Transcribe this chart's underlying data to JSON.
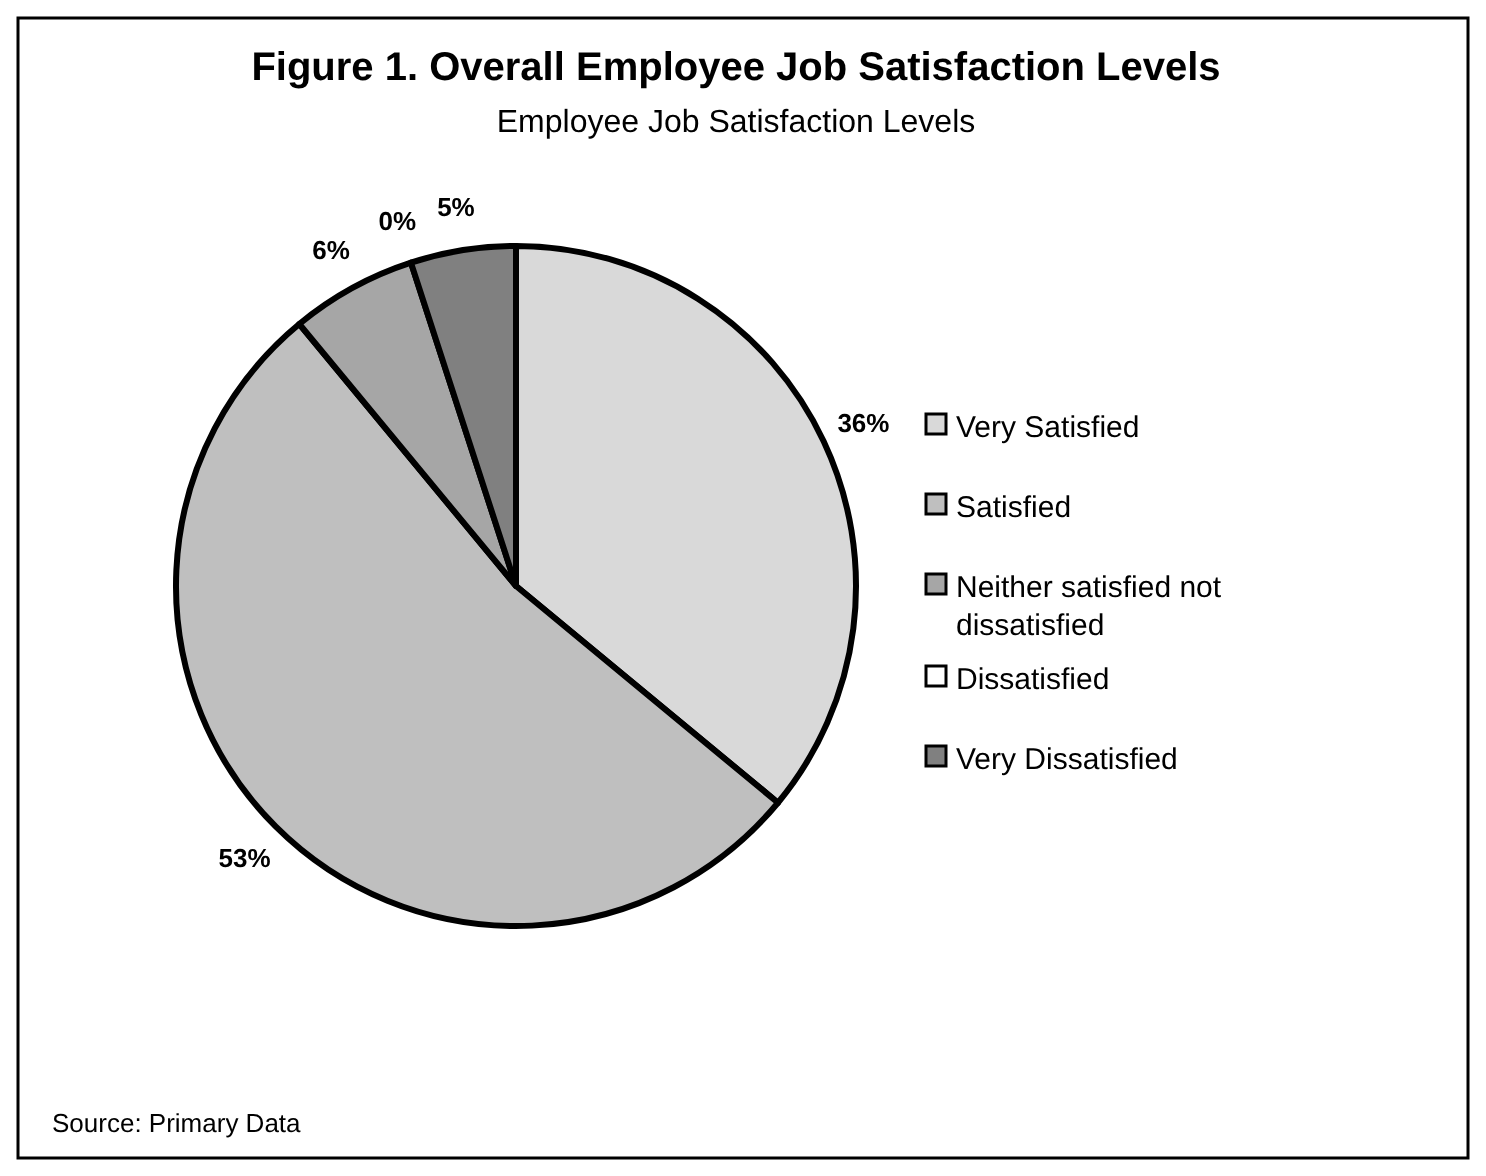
{
  "chart_data": {
    "type": "pie",
    "title": "Figure 1. Overall Employee Job Satisfaction Levels",
    "subtitle": "Employee Job Satisfaction Levels",
    "categories": [
      "Very Satisfied",
      "Satisfied",
      "Neither satisfied not dissatisfied",
      "Dissatisfied",
      "Very Dissatisfied"
    ],
    "values": [
      36,
      53,
      6,
      0,
      5
    ],
    "colors": [
      "#d9d9d9",
      "#bfbfbf",
      "#a6a6a6",
      "#ffffff",
      "#808080"
    ],
    "value_labels": [
      "36%",
      "53%",
      "6%",
      "0%",
      "5%"
    ],
    "legend": "right",
    "annotations": [
      "Source: Primary Data"
    ]
  }
}
